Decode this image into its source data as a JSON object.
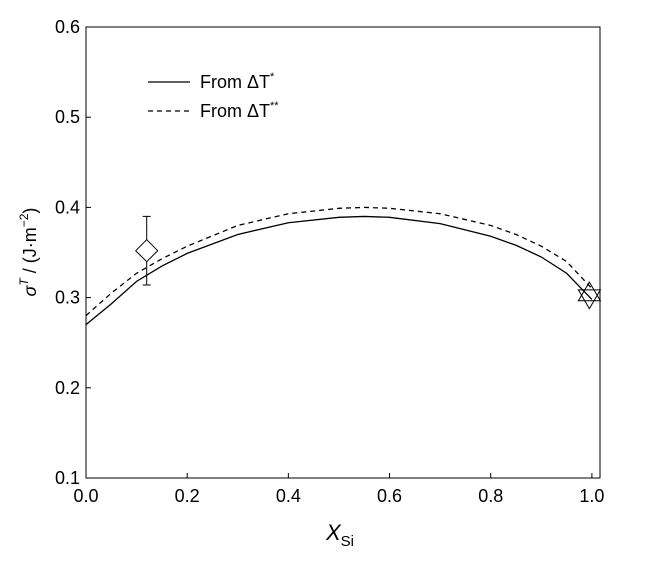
{
  "chart_data": {
    "type": "line",
    "xlabel": {
      "text": "X",
      "sub": "Si"
    },
    "ylabel": {
      "symbol": "σ",
      "sup": "T",
      "text": " / (J·m",
      "sup2": "−2",
      "close": ")"
    },
    "xlim": [
      0,
      1.016
    ],
    "ylim": [
      0.1,
      0.6
    ],
    "xticks": [
      {
        "value": 0,
        "label": "0.0"
      },
      0.2,
      0.4,
      0.6,
      0.8,
      {
        "value": 1,
        "label": "1.0"
      }
    ],
    "yticks": [
      0.1,
      0.2,
      0.3,
      0.4,
      0.5,
      0.6
    ],
    "legend": "upper left",
    "x": [
      0,
      0.05,
      0.1,
      0.15,
      0.2,
      0.3,
      0.4,
      0.5,
      0.55,
      0.6,
      0.7,
      0.8,
      0.85,
      0.9,
      0.95,
      1.0
    ],
    "series": [
      {
        "name": "From ΔT",
        "name_sup": "*",
        "color": "#000000",
        "dash": "solid",
        "values": [
          0.27,
          0.293,
          0.318,
          0.335,
          0.349,
          0.37,
          0.383,
          0.389,
          0.39,
          0.389,
          0.382,
          0.368,
          0.358,
          0.345,
          0.327,
          0.298
        ]
      },
      {
        "name": "From ΔT",
        "name_sup": "**",
        "color": "#000000",
        "dash": "dashed",
        "values": [
          0.28,
          0.305,
          0.327,
          0.343,
          0.357,
          0.38,
          0.393,
          0.399,
          0.4,
          0.399,
          0.393,
          0.38,
          0.37,
          0.357,
          0.34,
          0.31
        ]
      }
    ],
    "markers": [
      {
        "shape": "diamond",
        "x": 0.12,
        "y": 0.352,
        "error": 0.038
      },
      {
        "shape": "triangle-up",
        "x": 0.995,
        "y": 0.305
      },
      {
        "shape": "triangle-down",
        "x": 0.995,
        "y": 0.3
      }
    ]
  }
}
